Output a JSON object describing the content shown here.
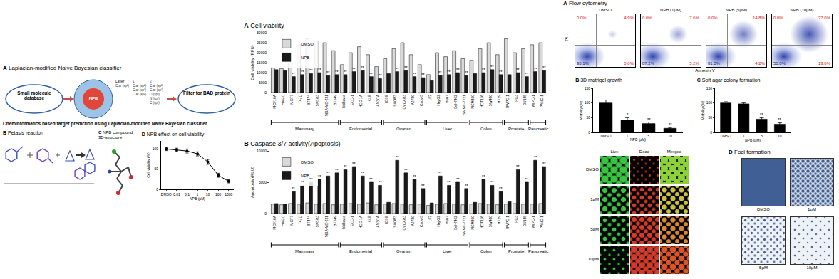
{
  "left": {
    "A": {
      "letter": "A",
      "title": "Laplacian-modified Naive Bayesian classifier",
      "nodes": [
        {
          "label": "Small molecule database"
        },
        {
          "label": "NPB"
        },
        {
          "label": "Filter for BAD protein"
        }
      ],
      "layer_table": {
        "header": [
          "Layer:",
          "1",
          "2"
        ],
        "columns": [
          [
            "C.ar (sp²)"
          ],
          [
            "C.ar (sp²)",
            "C.ar (sp³)",
            "C.ar (sp²)"
          ],
          [
            "C.ar (sp²)",
            "C.ar (sp³)",
            "O (sp²)",
            "N (sp³)",
            "C (sp³)"
          ]
        ]
      },
      "caption": "Cheminformatics based target prediction using Laplacian-modified Naive Bayesian classifier"
    },
    "B": {
      "letter": "B",
      "title": "Petasis reaction"
    },
    "C": {
      "letter": "C",
      "title": "NPB compound 3D-structure"
    }
  },
  "right": {
    "flow": {
      "letter": "A",
      "title": "Flow cytometry",
      "x_label": "Annexin V",
      "y_label": "PI",
      "plots": [
        {
          "label": "DMSO",
          "quadrants": {
            "ul": "0.0%",
            "ur": "4.9%",
            "ll": "95.1%",
            "lr": "0.0%"
          }
        },
        {
          "label": "NPB (1μM)",
          "quadrants": {
            "ul": "0.0%",
            "ur": "7.6%",
            "ll": "87.2%",
            "lr": "5.2%"
          }
        },
        {
          "label": "NPB (5μM)",
          "quadrants": {
            "ul": "0.0%",
            "ur": "14.8%",
            "ll": "81.0%",
            "lr": "4.2%"
          }
        },
        {
          "label": "NPB (10μM)",
          "quadrants": {
            "ul": "0.0%",
            "ur": "37.0%",
            "ll": "50.0%",
            "lr": "13.0%"
          }
        }
      ]
    },
    "live_dead": {
      "columns": [
        "Live",
        "Dead",
        "Merged"
      ],
      "rows": [
        "DMSO",
        "1μM",
        "5μM",
        "10μM"
      ]
    },
    "foci": {
      "letter": "D",
      "title": "Foci formation",
      "wells": [
        "DMSO",
        "1μM",
        "5μM",
        "10μM"
      ]
    }
  },
  "chart_data": [
    {
      "panel": "D",
      "type": "line",
      "title": "NPB effect on cell viability",
      "x_label": "NPB (μM)",
      "y_label": "Cell viability (%)",
      "categories": [
        "DMSO",
        "0.01",
        "0.1",
        "1",
        "10",
        "100",
        "1000"
      ],
      "values": [
        100,
        98,
        95,
        88,
        68,
        35,
        20
      ],
      "errors": [
        4,
        4,
        5,
        5,
        6,
        5,
        4
      ],
      "color": "#000000",
      "marker": "circle",
      "ylim": [
        0,
        120
      ],
      "yticks": [
        0,
        50,
        100
      ]
    },
    {
      "panel": "A",
      "type": "bar",
      "title": "Cell viability",
      "y_label": "Cell viability (RFU)",
      "categories": [
        "MCF10A",
        "HMEC",
        "MCF7",
        "T47D",
        "BT474",
        "SKBR3",
        "MDA-MB-231",
        "BT549",
        "Ishikawa",
        "ECC-1",
        "HEC-1A",
        "KLE",
        "AN3CA",
        "IOSE",
        "SKOV3",
        "OVCAR3",
        "A2780",
        "Caov-3",
        "L02",
        "HepG2",
        "Huh7",
        "Bel-7402",
        "SMMC-7721",
        "NCM460",
        "HCT116",
        "SW480",
        "HT29",
        "RWPE-1",
        "PC3",
        "DU145",
        "AsPC-1",
        "PANC-1"
      ],
      "groups": [
        {
          "label": "Mammary",
          "start": 0,
          "end": 7
        },
        {
          "label": "Endometrial",
          "start": 8,
          "end": 12
        },
        {
          "label": "Ovarian",
          "start": 13,
          "end": 17
        },
        {
          "label": "Liver",
          "start": 18,
          "end": 22
        },
        {
          "label": "Colon",
          "start": 23,
          "end": 26
        },
        {
          "label": "Prostate",
          "start": 27,
          "end": 29
        },
        {
          "label": "Pancreatic",
          "start": 30,
          "end": 31
        }
      ],
      "series": [
        {
          "name": "DMSO",
          "color": "#d9d9d9",
          "values": [
            12500,
            12000,
            15000,
            24000,
            27000,
            26000,
            25000,
            21000,
            14000,
            20000,
            23000,
            19000,
            13000,
            17000,
            22000,
            25000,
            19000,
            14000,
            9000,
            20000,
            18000,
            21000,
            17000,
            16000,
            22000,
            25000,
            19000,
            27000,
            20000,
            22000,
            24000,
            25000
          ]
        },
        {
          "name": "NPB",
          "color": "#1a1a1a",
          "values": [
            11500,
            11000,
            8000,
            9000,
            9500,
            10000,
            8500,
            9000,
            9000,
            10500,
            11000,
            8000,
            7000,
            9500,
            10500,
            11000,
            8000,
            7500,
            6000,
            8500,
            9000,
            10000,
            8500,
            9500,
            10000,
            11500,
            9000,
            9000,
            10000,
            8000,
            10500,
            11000
          ],
          "significance": [
            null,
            null,
            "**",
            "**",
            "**",
            "**",
            "**",
            "**",
            "**",
            "**",
            "**",
            "**",
            "**",
            null,
            "**",
            "**",
            "**",
            "**",
            null,
            "**",
            "**",
            "**",
            "**",
            null,
            "**",
            "**",
            "**",
            null,
            "**",
            "**",
            "**",
            "**"
          ]
        }
      ],
      "legend": "top-left",
      "ylim": [
        0,
        30000
      ],
      "yticks": [
        0,
        5000,
        10000,
        15000,
        20000,
        25000,
        30000
      ]
    },
    {
      "panel": "B",
      "type": "bar",
      "title": "Caspase 3/7 activity(Apoptosis)",
      "y_label": "Apoptosis (RLU)",
      "categories": [
        "MCF10A",
        "HMEC",
        "MCF7",
        "T47D",
        "BT474",
        "SKBR3",
        "MDA-MB-231",
        "BT549",
        "Ishikawa",
        "ECC-1",
        "HEC-1A",
        "KLE",
        "AN3CA",
        "IOSE",
        "SKOV3",
        "OVCAR3",
        "A2780",
        "Caov-3",
        "L02",
        "HepG2",
        "Huh7",
        "Bel-7402",
        "SMMC-7721",
        "NCM460",
        "HCT116",
        "SW480",
        "HT29",
        "RWPE-1",
        "PC3",
        "DU145",
        "AsPC-1",
        "PANC-1"
      ],
      "groups": [
        {
          "label": "Mammary",
          "start": 0,
          "end": 7
        },
        {
          "label": "Endometrial",
          "start": 8,
          "end": 12
        },
        {
          "label": "Ovarian",
          "start": 13,
          "end": 17
        },
        {
          "label": "Liver",
          "start": 18,
          "end": 22
        },
        {
          "label": "Colon",
          "start": 23,
          "end": 26
        },
        {
          "label": "Prostate",
          "start": 27,
          "end": 29
        },
        {
          "label": "Pancreatic",
          "start": 30,
          "end": 31
        }
      ],
      "series": [
        {
          "name": "DMSO",
          "color": "#d9d9d9",
          "values": [
            1500,
            1400,
            1600,
            1500,
            1700,
            1500,
            1600,
            1400,
            1500,
            1600,
            1500,
            1700,
            1400,
            1500,
            1600,
            1500,
            1400,
            1500,
            1300,
            1500,
            1600,
            1500,
            1400,
            1500,
            1600,
            1500,
            1400,
            1500,
            1600,
            1500,
            1500,
            1600
          ]
        },
        {
          "name": "NPB",
          "color": "#1a1a1a",
          "values": [
            1600,
            1500,
            3500,
            4500,
            5000,
            5500,
            6000,
            6500,
            7000,
            7500,
            6000,
            5000,
            4500,
            1800,
            8500,
            6500,
            5500,
            4000,
            1700,
            6000,
            4500,
            5000,
            4000,
            1800,
            5500,
            4500,
            3500,
            1900,
            7000,
            5000,
            8500,
            7500
          ],
          "significance": [
            null,
            null,
            "**",
            "**",
            "**",
            "**",
            "**",
            "**",
            "**",
            "**",
            "**",
            "**",
            "**",
            null,
            "**",
            "**",
            "**",
            "**",
            null,
            "**",
            "**",
            "**",
            "**",
            null,
            "**",
            "**",
            "**",
            null,
            "**",
            "**",
            "**",
            "**"
          ]
        }
      ],
      "legend": "top-left",
      "ylim": [
        0,
        10000
      ],
      "yticks": [
        0,
        5000,
        10000
      ]
    },
    {
      "panel": "B",
      "type": "bar",
      "title": "3D matrigel growth",
      "x_label": "NPB (μM)",
      "y_label": "Viability (%)",
      "categories": [
        "DMSO",
        "1",
        "5",
        "10"
      ],
      "values": [
        100,
        42,
        30,
        14
      ],
      "errors": [
        10,
        8,
        5,
        3
      ],
      "significance": [
        null,
        "*",
        "**",
        "**"
      ],
      "color": "#000000",
      "ylim": [
        0,
        150
      ],
      "yticks": [
        0,
        50,
        100,
        150
      ]
    },
    {
      "panel": "C",
      "type": "bar",
      "title": "Soft agar colony formation",
      "x_label": "NPB (μM)",
      "y_label": "Viability (%)",
      "categories": [
        "DMSO",
        "1",
        "5",
        "10"
      ],
      "values": [
        100,
        97,
        45,
        28
      ],
      "errors": [
        4,
        3,
        5,
        5
      ],
      "significance": [
        null,
        null,
        "**",
        "**"
      ],
      "color": "#000000",
      "ylim": [
        0,
        150
      ],
      "yticks": [
        0,
        50,
        100,
        150
      ]
    }
  ]
}
